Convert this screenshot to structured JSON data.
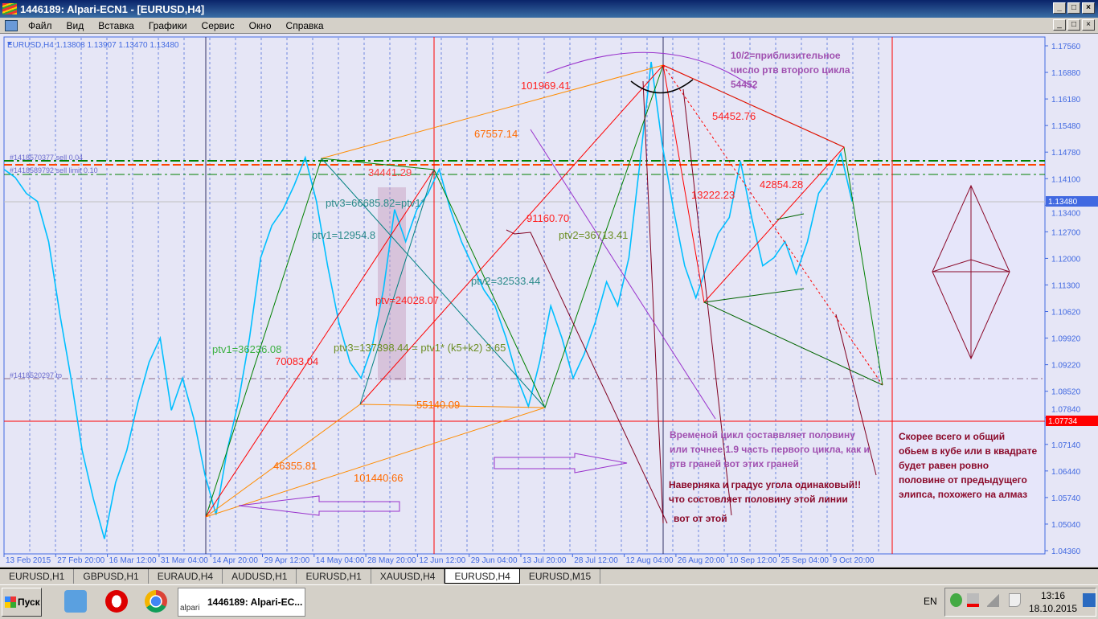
{
  "window": {
    "title": "1446189: Alpari-ECN1 - [EURUSD,H4]",
    "controls": [
      "_",
      "□",
      "×"
    ]
  },
  "menu": [
    "Файл",
    "Вид",
    "Вставка",
    "Графики",
    "Сервис",
    "Окно",
    "Справка"
  ],
  "chart_header": "EURUSD,H4  1.13808 1.13907 1.13470 1.13480",
  "chart_data": {
    "type": "line",
    "symbol": "EURUSD,H4",
    "ohlc_header": {
      "open": 1.13808,
      "high": 1.13907,
      "low": 1.1347,
      "close": 1.1348
    },
    "ylim": [
      1.0436,
      1.1756
    ],
    "y_ticks": [
      "1.17560",
      "1.16880",
      "1.16180",
      "1.15480",
      "1.14780",
      "1.14100",
      "1.13400",
      "1.12700",
      "1.12000",
      "1.11300",
      "1.10620",
      "1.09920",
      "1.09220",
      "1.08520",
      "1.07840",
      "1.07140",
      "1.06440",
      "1.05740",
      "1.05040",
      "1.04360"
    ],
    "x_ticks": [
      "13 Feb 2015",
      "27 Feb 20:00",
      "16 Mar 12:00",
      "31 Mar 04:00",
      "14 Apr 20:00",
      "29 Apr 12:00",
      "14 May 04:00",
      "28 May 20:00",
      "12 Jun 12:00",
      "29 Jun 04:00",
      "13 Jul 20:00",
      "28 Jul 12:00",
      "12 Aug 04:00",
      "26 Aug 20:00",
      "10 Sep 12:00",
      "25 Sep 04:00",
      "9 Oct 20:00"
    ],
    "current_price": "1.13480",
    "line_price": "1.07734",
    "series": [
      {
        "color": "#00bfff",
        "values": [
          1.1433,
          1.1412,
          1.137,
          1.1349,
          1.1244,
          1.1055,
          1.0887,
          1.0698,
          1.0572,
          1.0467,
          1.0614,
          1.0698,
          1.0824,
          1.0929,
          1.0992,
          1.0803,
          1.0887,
          1.0782,
          1.0635,
          1.053,
          1.0698,
          1.0824,
          1.0992,
          1.1202,
          1.1286,
          1.1328,
          1.1391,
          1.1464,
          1.1349,
          1.1181,
          1.1034,
          1.0929,
          1.0887,
          1.0971,
          1.1118,
          1.1328,
          1.1244,
          1.1328,
          1.137,
          1.1433,
          1.1328,
          1.1244,
          1.1181,
          1.1118,
          1.1076,
          1.0992,
          1.0887,
          1.0813,
          1.0929,
          1.1076,
          1.0992,
          1.0887,
          1.095,
          1.1034,
          1.1139,
          1.1076,
          1.1202,
          1.1454,
          1.1714,
          1.1496,
          1.1328,
          1.1181,
          1.1097,
          1.1181,
          1.1265,
          1.1307,
          1.1454,
          1.1307,
          1.1181,
          1.1202,
          1.1244,
          1.116,
          1.1244,
          1.137,
          1.1412,
          1.1475,
          1.1349
        ]
      }
    ],
    "orders": [
      "#1418570377 sell 0.04",
      "#1418589792 sell limit 0.10",
      "#1418520297 tp"
    ],
    "labels": {
      "l1": "101969.41",
      "l2": "67557.14",
      "l3": "34441.29",
      "l4": "ptv3=66685.82=ptv1*",
      "l5": "ptv1=12954.8",
      "l6": "91160.70",
      "l7": "ptv2=36713.41",
      "l8": "ptv2=32533.44",
      "l9": "ptv=24028.07",
      "l10": "ptv1=36236.08",
      "l11": "70083.04",
      "l12": "ptv3=137398.44 = ptv1* (k5+k2) 3.65",
      "l13": "55140.09",
      "l14": "46355.81",
      "l15": "101440.66",
      "l16": "54452.76",
      "l17": "13222.23",
      "l18": "42854.28"
    },
    "notes": {
      "top": [
        "10/2=приблизительное",
        "число ртв второго цикла",
        "54452"
      ],
      "cycle": [
        "Временой цикл составвляет половину",
        "или точнее 1.9 часть первого цикла, как и",
        "ртв граней вот этих граней"
      ],
      "angle": [
        "Наверняка и градус угола одинаковый!!",
        "что состовляет половину этой линии"
      ],
      "this": "вот от этой",
      "right": [
        "Скорее всего и общий",
        "обьем в кубе или в квадрате",
        "будет равен ровно",
        "половине  от предыдущего",
        "элипса, похожего на алмаз"
      ]
    }
  },
  "tabs": [
    {
      "label": "EURUSD,H1"
    },
    {
      "label": "GBPUSD,H1"
    },
    {
      "label": "EURAUD,H4"
    },
    {
      "label": "AUDUSD,H1"
    },
    {
      "label": "EURUSD,H1"
    },
    {
      "label": "XAUUSD,H4"
    },
    {
      "label": "EURUSD,H4",
      "active": true
    },
    {
      "label": "EURUSD,M15"
    }
  ],
  "taskbar": {
    "start": "Пуск",
    "task": "1446189: Alpari-EC...",
    "task_logo": "alpari",
    "lang": "EN",
    "time": "13:16",
    "date": "18.10.2015"
  }
}
